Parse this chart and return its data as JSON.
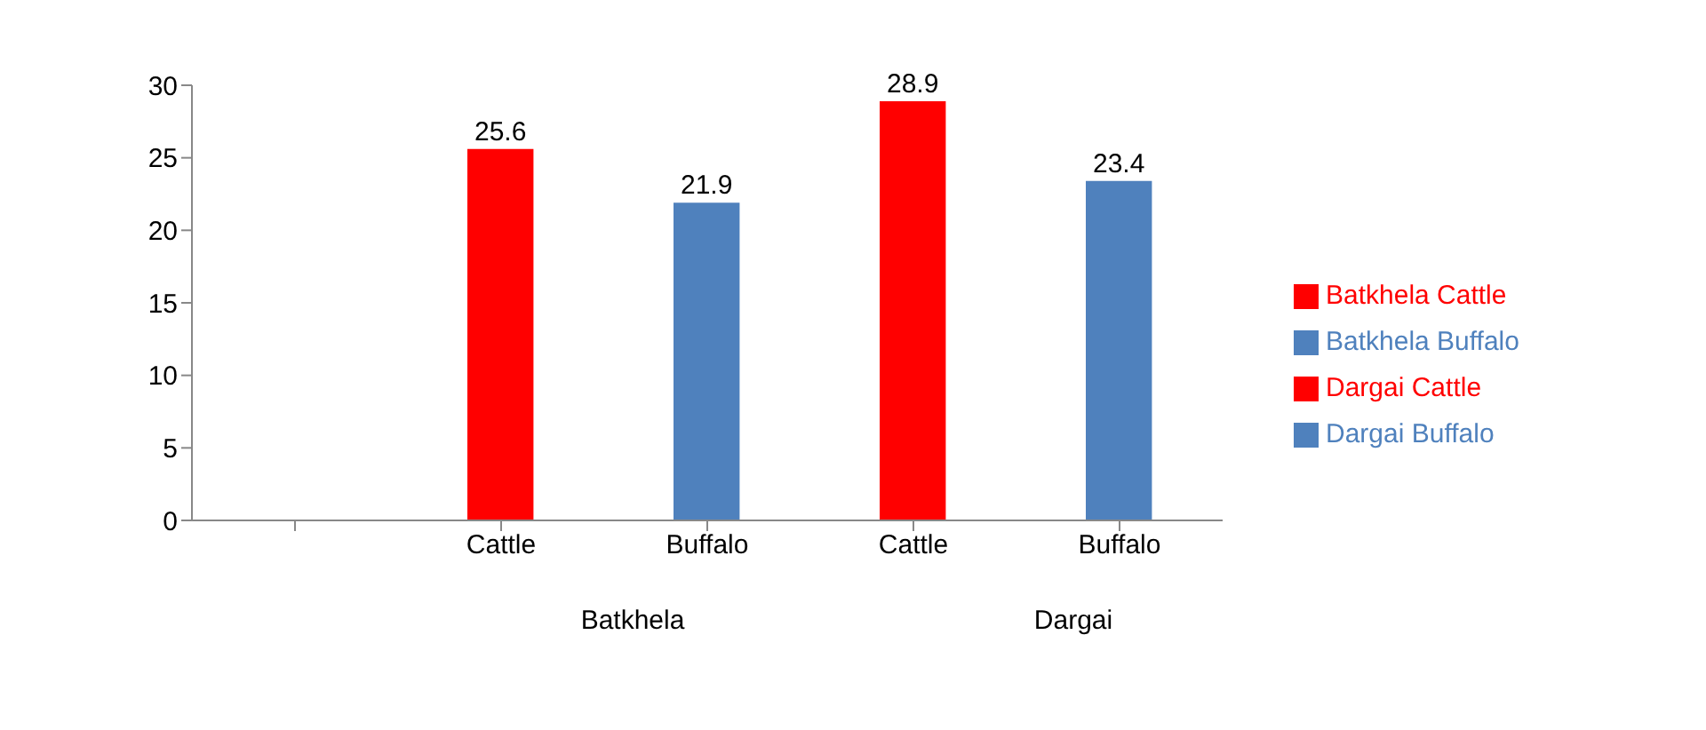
{
  "chart_data": {
    "type": "bar",
    "categories": [
      null,
      "Cattle",
      "Buffalo",
      "Cattle",
      "Buffalo"
    ],
    "stacked": true,
    "series": [
      {
        "name": "Batkhela Cattle",
        "color": "#ff0000",
        "values": [
          null,
          25.6,
          null,
          null,
          null
        ]
      },
      {
        "name": "Batkhela Buffalo",
        "color": "#4f81bd",
        "values": [
          null,
          null,
          21.9,
          null,
          null
        ]
      },
      {
        "name": "Dargai Cattle",
        "color": "#ff0000",
        "values": [
          null,
          null,
          null,
          28.9,
          null
        ]
      },
      {
        "name": "Dargai Buffalo",
        "color": "#4f81bd",
        "values": [
          null,
          null,
          null,
          null,
          23.4
        ]
      }
    ],
    "annotations": [
      "Batkhela",
      "Dargai"
    ],
    "ylim": [
      0,
      30
    ],
    "yticks": [
      0,
      5,
      10,
      15,
      20,
      25,
      30
    ],
    "grid": false,
    "legend": "right",
    "data_labels": true
  }
}
